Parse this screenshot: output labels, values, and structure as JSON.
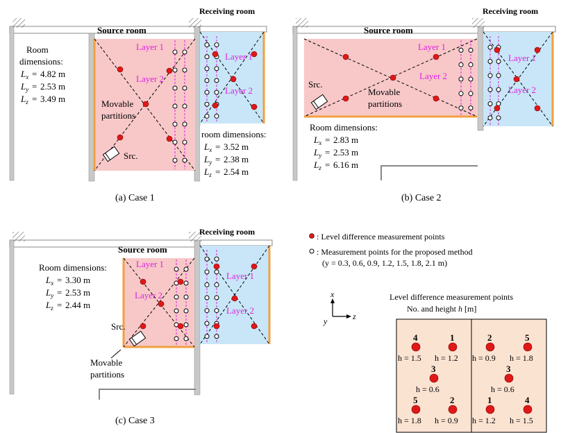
{
  "case1": {
    "caption": "(a) Case 1",
    "source_room": "Source room",
    "receiving_room": "Receiving room",
    "source_dims_title_1": "Room",
    "source_dims_title_2": "dimensions:",
    "source_lx": "4.82 m",
    "source_ly": "2.53 m",
    "source_lz": "3.49 m",
    "receiving_dims_title": "room dimensions:",
    "receiving_lx": "3.52 m",
    "receiving_ly": "2.38 m",
    "receiving_lz": "2.54 m",
    "movable_1": "Movable",
    "movable_2": "partitions",
    "src": "Src.",
    "layer1": "Layer 1",
    "layer2": "Layer 2"
  },
  "case2": {
    "caption": "(b) Case 2",
    "source_room": "Source room",
    "receiving_room": "Receiving room",
    "source_dims_title": "Room dimensions:",
    "source_lx": "2.83 m",
    "source_ly": "2.53 m",
    "source_lz": "6.16 m",
    "movable_1": "Movable",
    "movable_2": "partitions",
    "src": "Src.",
    "layer1": "Layer 1",
    "layer2": "Layer 2"
  },
  "case3": {
    "caption": "(c) Case 3",
    "source_room": "Source room",
    "receiving_room": "Receiving room",
    "source_dims_title": "Room dimensions:",
    "source_lx": "3.30 m",
    "source_ly": "2.53 m",
    "source_lz": "2.44 m",
    "movable_1": "Movable",
    "movable_2": "partitions",
    "src": "Src.",
    "layer1": "Layer 1",
    "layer2": "Layer 2"
  },
  "legend": {
    "level_points": ": Level difference measurement points",
    "proposed_points": ": Measurement points for the proposed method",
    "proposed_heights": "(y = 0.3, 0.6, 0.9, 1.2, 1.5, 1.8, 2.1 m)"
  },
  "axes": {
    "x": "x",
    "y": "y",
    "z": "z"
  },
  "inset": {
    "title_1": "Level difference measurement points",
    "title_2": "No. and height h [m]",
    "left": [
      {
        "no": "4",
        "h": "h = 1.5"
      },
      {
        "no": "1",
        "h": "h = 1.2"
      },
      {
        "no": "3",
        "h": "h = 0.6"
      },
      {
        "no": "5",
        "h": "h = 1.8"
      },
      {
        "no": "2",
        "h": "h = 0.9"
      }
    ],
    "right": [
      {
        "no": "2",
        "h": "h = 0.9"
      },
      {
        "no": "5",
        "h": "h = 1.8"
      },
      {
        "no": "3",
        "h": "h = 0.6"
      },
      {
        "no": "1",
        "h": "h = 1.2"
      },
      {
        "no": "4",
        "h": "h = 1.5"
      }
    ]
  },
  "symbols": {
    "Lx": "L",
    "Ly": "L",
    "Lz": "L"
  },
  "colors": {
    "source_fill": "#f8c8c8",
    "receiving_fill": "#c8e6f8",
    "partition": "#f0a040",
    "point": "#e01818",
    "layer": "#e020e0",
    "inset_fill": "#fbe3d2",
    "wall": "#b0b0b0"
  }
}
